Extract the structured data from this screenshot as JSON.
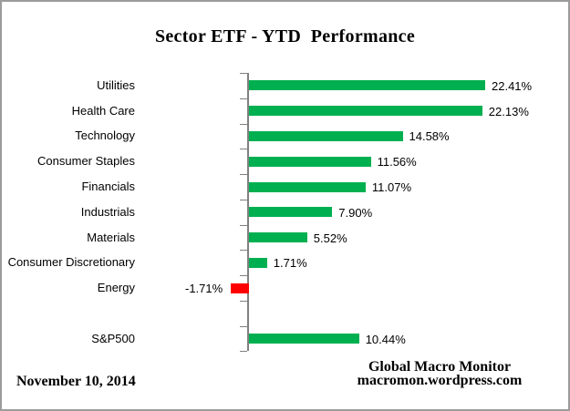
{
  "chart_data": {
    "type": "bar",
    "orientation": "horizontal",
    "title": "Sector ETF - YTD  Performance",
    "categories": [
      "Utilities",
      "Health Care",
      "Technology",
      "Consumer Staples",
      "Financials",
      "Industrials",
      "Materials",
      "Consumer Discretionary",
      "Energy",
      "",
      "S&P500"
    ],
    "values": [
      22.41,
      22.13,
      14.58,
      11.56,
      11.07,
      7.9,
      5.52,
      1.71,
      -1.71,
      null,
      10.44
    ],
    "value_labels": [
      "22.41%",
      "22.13%",
      "14.58%",
      "11.56%",
      "11.07%",
      "7.90%",
      "5.52%",
      "1.71%",
      "-1.71%",
      null,
      "10.44%"
    ],
    "xlabel": "",
    "ylabel": "",
    "xlim_estimate": [
      -10,
      30
    ],
    "grid": false,
    "legend": false,
    "value_axis_labels_visible": false
  },
  "footer": {
    "date": "November 10, 2014",
    "source_line1": "Global Macro Monitor",
    "source_line2": "macromon.wordpress.com"
  },
  "colors": {
    "positive_bar": "#00B050",
    "negative_bar": "#FF0000",
    "axis": "#808080",
    "frame_border": "#9C9C9C",
    "background": "#FFFFFF",
    "text": "#000000"
  }
}
